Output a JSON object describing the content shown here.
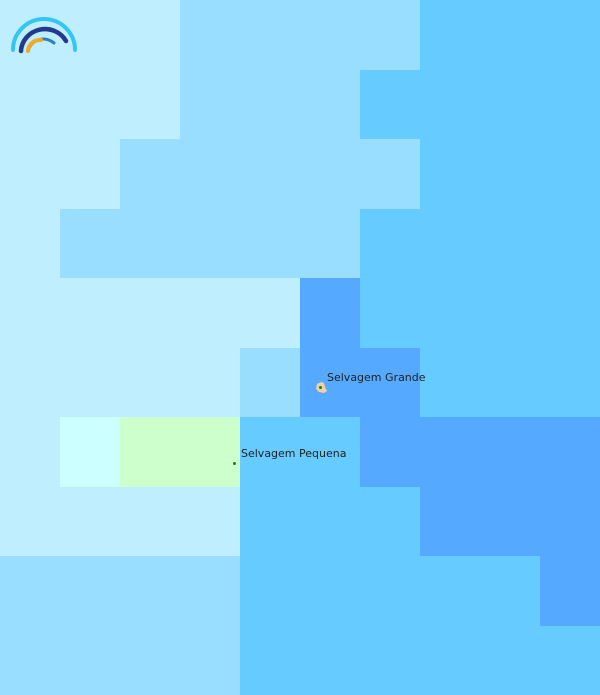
{
  "map": {
    "palette": {
      "a": "#bfefff",
      "b": "#99ddff",
      "c": "#66ccff",
      "d": "#55aaff",
      "e": "#ccffff",
      "f": "#ccffcc"
    },
    "grid_rows": [
      "aaabbbbccc",
      "aaabbbcccc",
      "aabbbbbccc",
      "abbbbbcccc",
      "aaaaadcccc",
      "aaaabddccc",
      "aeffccdddd",
      "aaaacccddd",
      "bbbbcccccd",
      "bbbbcccccc"
    ],
    "island_color": "#f5cf9f",
    "places": [
      {
        "name": "Selvagem Grande"
      },
      {
        "name": "Selvagem Pequena"
      }
    ]
  },
  "logo": {
    "icon": "rainbow-arc-logo",
    "colors": [
      "#33c6f4",
      "#223a8c",
      "#2a7fc1",
      "#f7a823"
    ]
  }
}
